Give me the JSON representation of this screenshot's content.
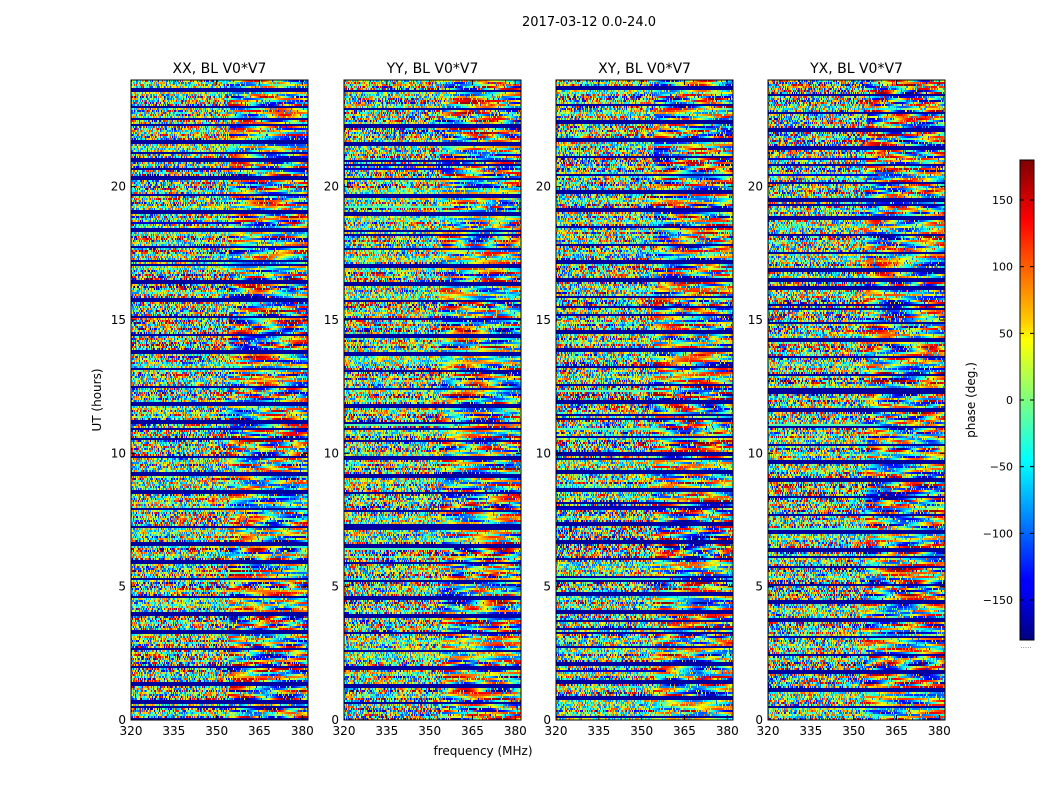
{
  "chart_data": {
    "type": "heatmap",
    "suptitle": "2017-03-12 0.0-24.0",
    "xlabel": "frequency (MHz)",
    "ylabel": "UT (hours)",
    "xlim": [
      320,
      382
    ],
    "ylim": [
      0,
      24
    ],
    "xticks": [
      320,
      335,
      350,
      365,
      380
    ],
    "xtick_labels": [
      "320",
      "335",
      "350",
      "365",
      "380"
    ],
    "yticks": [
      0,
      5,
      10,
      15,
      20
    ],
    "ytick_labels": [
      "0",
      "5",
      "10",
      "15",
      "20"
    ],
    "panels": [
      {
        "title": "XX, BL V0*V7",
        "seed": 11
      },
      {
        "title": "YY, BL V0*V7",
        "seed": 23
      },
      {
        "title": "XY, BL V0*V7",
        "seed": 37
      },
      {
        "title": "YX, BL V0*V7",
        "seed": 53
      }
    ],
    "colorbar": {
      "label": "phase (deg.)",
      "vmin": -180,
      "vmax": 180,
      "ticks": [
        -150,
        -100,
        -50,
        0,
        50,
        100,
        150
      ],
      "tick_labels": [
        "−150",
        "−100",
        "−50",
        "0",
        "50",
        "100",
        "150"
      ],
      "colormap": "jet",
      "extra_label": "....."
    }
  }
}
